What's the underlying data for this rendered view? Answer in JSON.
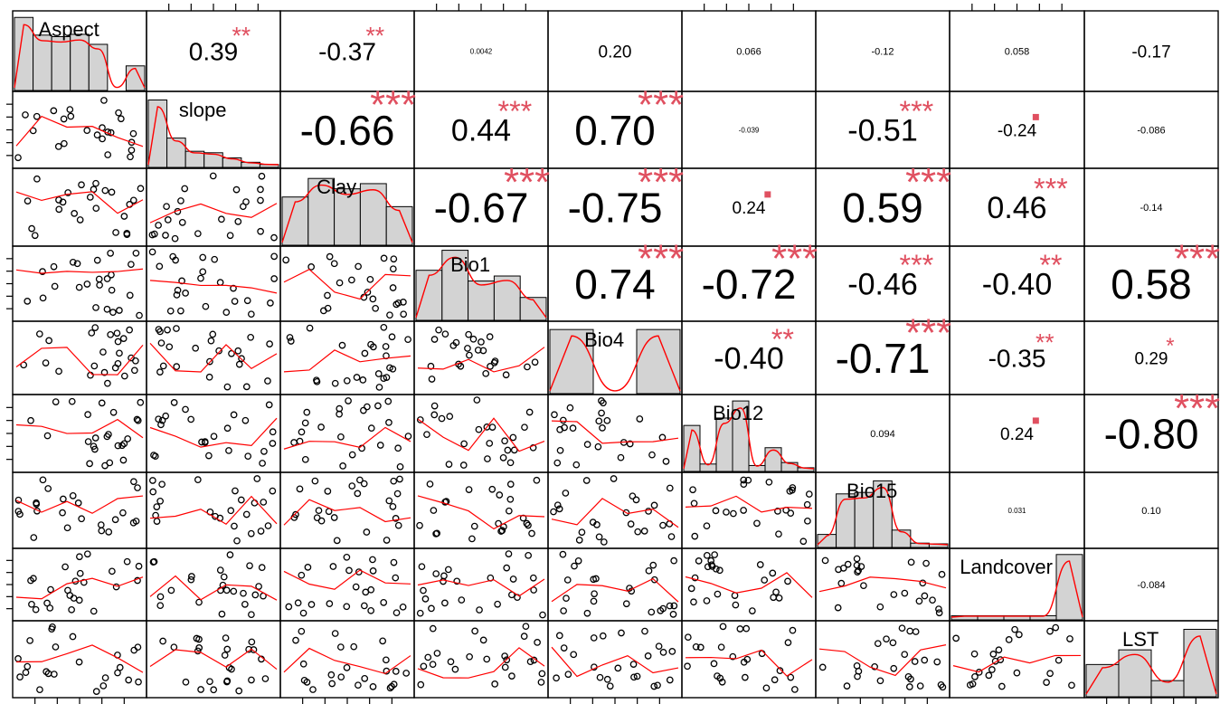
{
  "chart_data": {
    "type": "scatter-matrix",
    "variables": [
      "Aspect",
      "slope",
      "Clay",
      "Bio1",
      "Bio4",
      "Bio12",
      "Bio15",
      "Landcover",
      "LST"
    ],
    "correlations": [
      {
        "row": 0,
        "col": 1,
        "value": "0.39",
        "stars": "**"
      },
      {
        "row": 0,
        "col": 2,
        "value": "-0.37",
        "stars": "**"
      },
      {
        "row": 0,
        "col": 3,
        "value": "0.0042",
        "stars": ""
      },
      {
        "row": 0,
        "col": 4,
        "value": "0.20",
        "stars": ""
      },
      {
        "row": 0,
        "col": 5,
        "value": "0.066",
        "stars": ""
      },
      {
        "row": 0,
        "col": 6,
        "value": "-0.12",
        "stars": ""
      },
      {
        "row": 0,
        "col": 7,
        "value": "0.058",
        "stars": ""
      },
      {
        "row": 0,
        "col": 8,
        "value": "-0.17",
        "stars": ""
      },
      {
        "row": 1,
        "col": 2,
        "value": "-0.66",
        "stars": "***"
      },
      {
        "row": 1,
        "col": 3,
        "value": "0.44",
        "stars": "***"
      },
      {
        "row": 1,
        "col": 4,
        "value": "0.70",
        "stars": "***"
      },
      {
        "row": 1,
        "col": 5,
        "value": "-0.039",
        "stars": ""
      },
      {
        "row": 1,
        "col": 6,
        "value": "-0.51",
        "stars": "***"
      },
      {
        "row": 1,
        "col": 7,
        "value": "-0.24",
        "stars": "."
      },
      {
        "row": 1,
        "col": 8,
        "value": "-0.086",
        "stars": ""
      },
      {
        "row": 2,
        "col": 3,
        "value": "-0.67",
        "stars": "***"
      },
      {
        "row": 2,
        "col": 4,
        "value": "-0.75",
        "stars": "***"
      },
      {
        "row": 2,
        "col": 5,
        "value": "0.24",
        "stars": "."
      },
      {
        "row": 2,
        "col": 6,
        "value": "0.59",
        "stars": "***"
      },
      {
        "row": 2,
        "col": 7,
        "value": "0.46",
        "stars": "***"
      },
      {
        "row": 2,
        "col": 8,
        "value": "-0.14",
        "stars": ""
      },
      {
        "row": 3,
        "col": 4,
        "value": "0.74",
        "stars": "***"
      },
      {
        "row": 3,
        "col": 5,
        "value": "-0.72",
        "stars": "***"
      },
      {
        "row": 3,
        "col": 6,
        "value": "-0.46",
        "stars": "***"
      },
      {
        "row": 3,
        "col": 7,
        "value": "-0.40",
        "stars": "**"
      },
      {
        "row": 3,
        "col": 8,
        "value": "0.58",
        "stars": "***"
      },
      {
        "row": 4,
        "col": 5,
        "value": "-0.40",
        "stars": "**"
      },
      {
        "row": 4,
        "col": 6,
        "value": "-0.71",
        "stars": "***"
      },
      {
        "row": 4,
        "col": 7,
        "value": "-0.35",
        "stars": "**"
      },
      {
        "row": 4,
        "col": 8,
        "value": "0.29",
        "stars": "*"
      },
      {
        "row": 5,
        "col": 6,
        "value": "0.094",
        "stars": ""
      },
      {
        "row": 5,
        "col": 7,
        "value": "0.24",
        "stars": "."
      },
      {
        "row": 5,
        "col": 8,
        "value": "-0.80",
        "stars": "***"
      },
      {
        "row": 6,
        "col": 7,
        "value": "0.031",
        "stars": ""
      },
      {
        "row": 6,
        "col": 8,
        "value": "0.10",
        "stars": ""
      },
      {
        "row": 7,
        "col": 8,
        "value": "-0.084",
        "stars": ""
      }
    ],
    "histograms": [
      [
        0.95,
        0.72,
        0.7,
        0.73,
        0.6,
        0.0,
        0.32
      ],
      [
        0.92,
        0.4,
        0.22,
        0.2,
        0.13,
        0.07,
        0.04
      ],
      [
        0.65,
        0.9,
        0.76,
        0.83,
        0.52
      ],
      [
        0.7,
        0.98,
        0.55,
        0.62,
        0.32
      ],
      [
        0.92,
        0.0,
        0.92
      ],
      [
        0.62,
        0.1,
        0.72,
        0.95,
        0.08,
        0.32,
        0.12,
        0.05
      ],
      [
        0.18,
        0.74,
        0.76,
        0.92,
        0.24,
        0.06,
        0.05
      ],
      [
        0.06,
        0.06,
        0.06,
        0.06,
        0.95
      ],
      [
        0.44,
        0.64,
        0.22,
        0.92
      ]
    ],
    "colors": {
      "smooth": "#ff0000",
      "stars": "#e05060",
      "bar": "#d3d3d3",
      "text": "#000000"
    }
  }
}
